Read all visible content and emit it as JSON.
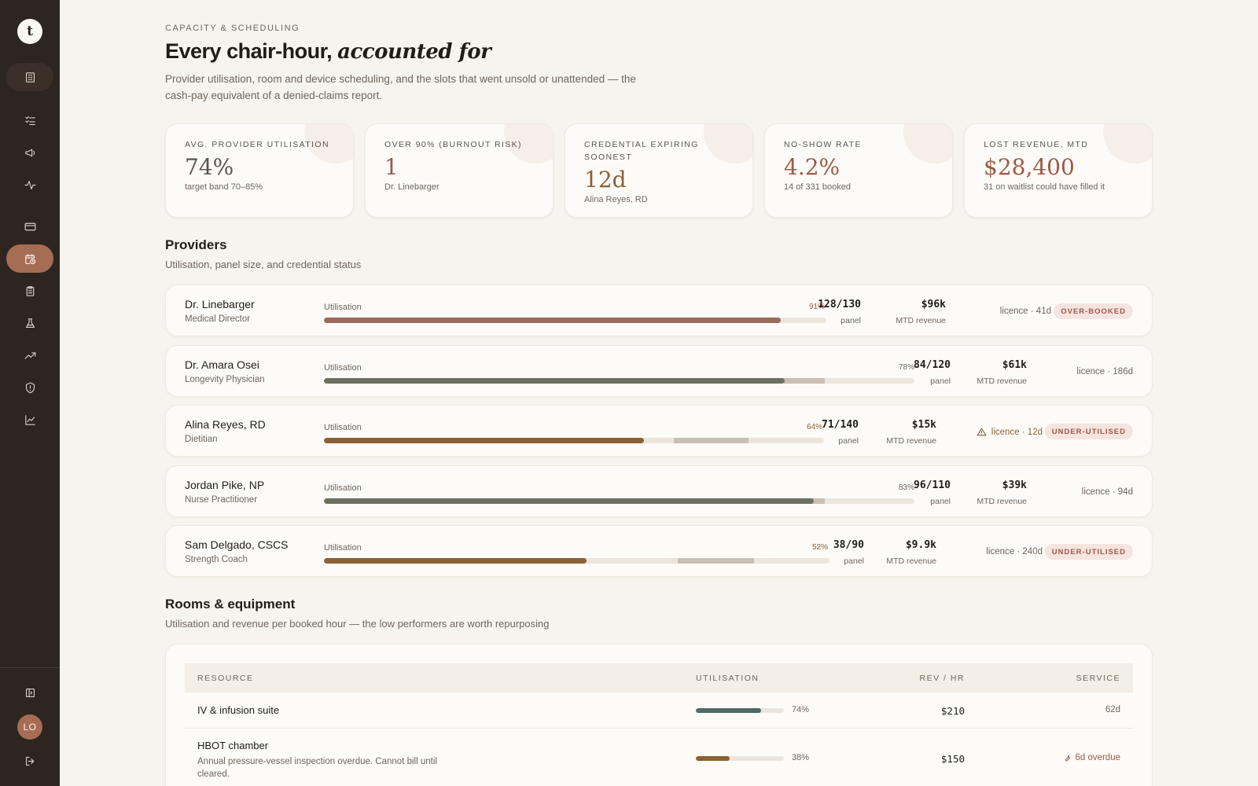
{
  "colors": {
    "sidebar": "#2d2520",
    "accent": "#a66d55",
    "rust": "#9c5a46",
    "sage": "#6c705f",
    "amber": "#8b6134",
    "teal": "#4f6966"
  },
  "sidebar": {
    "logo": "t",
    "avatar": "LO",
    "icons": [
      "building-icon",
      "checklist-icon",
      "megaphone-icon",
      "activity-icon",
      "credit-card-icon",
      "calendar-clock-icon",
      "clipboard-icon",
      "flask-icon",
      "trending-up-icon",
      "shield-icon",
      "line-chart-icon",
      "sidebar-toggle-icon",
      "logout-icon"
    ]
  },
  "header": {
    "eyebrow": "CAPACITY & SCHEDULING",
    "title_plain": "Every chair-hour,",
    "title_italic": "accounted for",
    "subtitle": "Provider utilisation, room and device scheduling, and the slots that went unsold or unattended — the cash-pay equivalent of a denied-claims report."
  },
  "kpis": [
    {
      "label": "AVG. PROVIDER UTILISATION",
      "value": "74%",
      "note": "target band 70–85%"
    },
    {
      "label": "OVER 90% (BURNOUT RISK)",
      "value": "1",
      "note": "Dr. Linebarger"
    },
    {
      "label": "CREDENTIAL EXPIRING SOONEST",
      "value": "12d",
      "note": "Alina Reyes, RD"
    },
    {
      "label": "NO-SHOW RATE",
      "value": "4.2%",
      "note": "14 of 331 booked"
    },
    {
      "label": "LOST REVENUE, MTD",
      "value": "$28,400",
      "note": "31 on waitlist could have filled it"
    }
  ],
  "providers_section": {
    "title": "Providers",
    "subtitle": "Utilisation, panel size, and credential status",
    "util_label": "Utilisation",
    "panel_label": "panel",
    "revenue_label": "MTD revenue"
  },
  "providers": [
    {
      "name": "Dr. Linebarger",
      "role": "Medical Director",
      "utilisation_pct": 91,
      "utilisation_text": "91%",
      "panel": "128/130",
      "revenue": "$96k",
      "licence": "licence · 41d",
      "badge": "OVER-BOOKED"
    },
    {
      "name": "Dr. Amara Osei",
      "role": "Longevity Physician",
      "utilisation_pct": 78,
      "utilisation_text": "78%",
      "panel": "84/120",
      "revenue": "$61k",
      "licence": "licence · 186d",
      "badge": ""
    },
    {
      "name": "Alina Reyes, RD",
      "role": "Dietitian",
      "utilisation_pct": 64,
      "utilisation_text": "64%",
      "panel": "71/140",
      "revenue": "$15k",
      "licence": "licence · 12d",
      "badge": "UNDER-UTILISED"
    },
    {
      "name": "Jordan Pike, NP",
      "role": "Nurse Practitioner",
      "utilisation_pct": 83,
      "utilisation_text": "83%",
      "panel": "96/110",
      "revenue": "$39k",
      "licence": "licence · 94d",
      "badge": ""
    },
    {
      "name": "Sam Delgado, CSCS",
      "role": "Strength Coach",
      "utilisation_pct": 52,
      "utilisation_text": "52%",
      "panel": "38/90",
      "revenue": "$9.9k",
      "licence": "licence · 240d",
      "badge": "UNDER-UTILISED"
    }
  ],
  "rooms_section": {
    "title": "Rooms & equipment",
    "subtitle": "Utilisation and revenue per booked hour — the low performers are worth repurposing",
    "columns": [
      "RESOURCE",
      "UTILISATION",
      "REV / HR",
      "SERVICE"
    ]
  },
  "rooms": [
    {
      "name": "IV & infusion suite",
      "description": "",
      "utilisation_pct": 74,
      "utilisation_text": "74%",
      "rev_hr": "$210",
      "service": "62d",
      "overdue": false
    },
    {
      "name": "HBOT chamber",
      "description": "Annual pressure-vessel inspection overdue. Cannot bill until cleared.",
      "utilisation_pct": 38,
      "utilisation_text": "38%",
      "rev_hr": "$150",
      "service": "6d overdue",
      "overdue": true
    }
  ]
}
